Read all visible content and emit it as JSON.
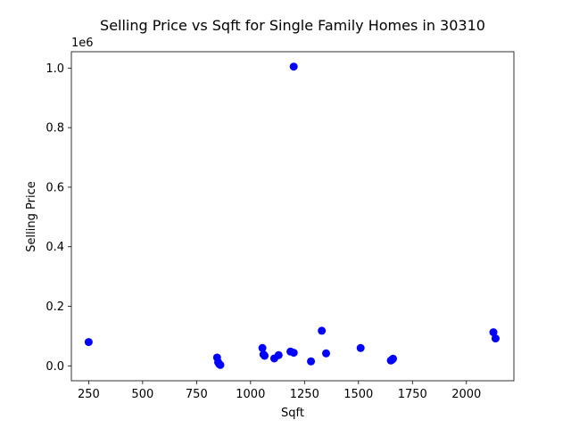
{
  "chart_data": {
    "type": "scatter",
    "title": "Selling Price vs Sqft for Single Family Homes in 30310",
    "xlabel": "Sqft",
    "ylabel": "Selling Price",
    "y_offset_text": "1e6",
    "xlim": [
      170,
      2220
    ],
    "ylim": [
      -50000,
      1055000
    ],
    "xticks": [
      250,
      500,
      750,
      1000,
      1250,
      1500,
      1750,
      2000
    ],
    "xtick_labels": [
      "250",
      "500",
      "750",
      "1000",
      "1250",
      "1500",
      "1750",
      "2000"
    ],
    "yticks": [
      0,
      200000,
      400000,
      600000,
      800000,
      1000000
    ],
    "ytick_labels": [
      "0.0",
      "0.2",
      "0.4",
      "0.6",
      "0.8",
      "1.0"
    ],
    "grid": false,
    "marker_color": "#0000ff",
    "series": [
      {
        "points": [
          {
            "x": 250,
            "y": 80000
          },
          {
            "x": 845,
            "y": 28000
          },
          {
            "x": 850,
            "y": 12000
          },
          {
            "x": 855,
            "y": 6000
          },
          {
            "x": 860,
            "y": 3000
          },
          {
            "x": 1055,
            "y": 60000
          },
          {
            "x": 1060,
            "y": 38000
          },
          {
            "x": 1065,
            "y": 34000
          },
          {
            "x": 1110,
            "y": 25000
          },
          {
            "x": 1130,
            "y": 36000
          },
          {
            "x": 1185,
            "y": 48000
          },
          {
            "x": 1200,
            "y": 44000
          },
          {
            "x": 1200,
            "y": 1005000
          },
          {
            "x": 1280,
            "y": 15000
          },
          {
            "x": 1330,
            "y": 118000
          },
          {
            "x": 1350,
            "y": 42000
          },
          {
            "x": 1510,
            "y": 60000
          },
          {
            "x": 1650,
            "y": 18000
          },
          {
            "x": 1655,
            "y": 20000
          },
          {
            "x": 1660,
            "y": 24000
          },
          {
            "x": 2125,
            "y": 113000
          },
          {
            "x": 2135,
            "y": 92000
          }
        ]
      }
    ]
  }
}
